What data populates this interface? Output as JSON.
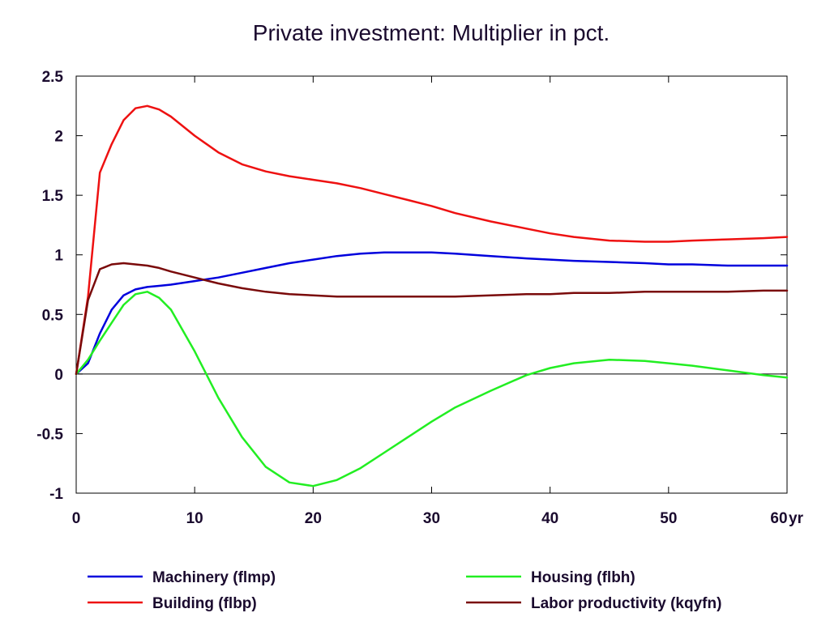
{
  "chart_data": {
    "type": "line",
    "title": "Private investment: Multiplier in pct.",
    "x_unit_label": "yr",
    "xlim": [
      0,
      60
    ],
    "ylim": [
      -1,
      2.5
    ],
    "x_ticks": [
      0,
      10,
      20,
      30,
      40,
      50,
      60
    ],
    "y_ticks": [
      -1,
      -0.5,
      0,
      0.5,
      1,
      1.5,
      2,
      2.5
    ],
    "x_tick_labels": [
      "0",
      "10",
      "20",
      "30",
      "40",
      "50",
      "60"
    ],
    "y_tick_labels": [
      "-1",
      "-0.5",
      "0",
      "0.5",
      "1",
      "1.5",
      "2",
      "2.5"
    ],
    "grid": false,
    "zero_line": true,
    "legend_position": "bottom",
    "x": [
      0,
      1,
      2,
      3,
      4,
      5,
      6,
      7,
      8,
      10,
      12,
      14,
      16,
      18,
      20,
      22,
      24,
      26,
      28,
      30,
      32,
      35,
      38,
      40,
      42,
      45,
      48,
      50,
      52,
      55,
      58,
      60
    ],
    "series": [
      {
        "name": "Machinery (flmp)",
        "color": "#0000dd",
        "values": [
          0,
          0.09,
          0.34,
          0.54,
          0.66,
          0.71,
          0.73,
          0.74,
          0.75,
          0.78,
          0.81,
          0.85,
          0.89,
          0.93,
          0.96,
          0.99,
          1.01,
          1.02,
          1.02,
          1.02,
          1.01,
          0.99,
          0.97,
          0.96,
          0.95,
          0.94,
          0.93,
          0.92,
          0.92,
          0.91,
          0.91,
          0.91
        ]
      },
      {
        "name": "Building (flbp)",
        "color": "#ee1111",
        "values": [
          0,
          0.65,
          1.69,
          1.93,
          2.13,
          2.23,
          2.25,
          2.22,
          2.16,
          2.0,
          1.86,
          1.76,
          1.7,
          1.66,
          1.63,
          1.6,
          1.56,
          1.51,
          1.46,
          1.41,
          1.35,
          1.28,
          1.22,
          1.18,
          1.15,
          1.12,
          1.11,
          1.11,
          1.12,
          1.13,
          1.14,
          1.15
        ]
      },
      {
        "name": "Housing (flbh)",
        "color": "#22ee22",
        "values": [
          0,
          0.12,
          0.28,
          0.43,
          0.58,
          0.67,
          0.69,
          0.64,
          0.54,
          0.19,
          -0.2,
          -0.53,
          -0.78,
          -0.91,
          -0.94,
          -0.89,
          -0.79,
          -0.66,
          -0.53,
          -0.4,
          -0.28,
          -0.14,
          -0.01,
          0.05,
          0.09,
          0.12,
          0.11,
          0.09,
          0.07,
          0.03,
          -0.01,
          -0.03
        ]
      },
      {
        "name": "Labor productivity (kqyfn)",
        "color": "#7a0a0a",
        "values": [
          0,
          0.62,
          0.88,
          0.92,
          0.93,
          0.92,
          0.91,
          0.89,
          0.86,
          0.81,
          0.76,
          0.72,
          0.69,
          0.67,
          0.66,
          0.65,
          0.65,
          0.65,
          0.65,
          0.65,
          0.65,
          0.66,
          0.67,
          0.67,
          0.68,
          0.68,
          0.69,
          0.69,
          0.69,
          0.69,
          0.7,
          0.7
        ]
      }
    ]
  },
  "legend": {
    "items": [
      {
        "label": "Machinery (flmp)",
        "color": "#0000dd"
      },
      {
        "label": "Housing (flbh)",
        "color": "#22ee22"
      },
      {
        "label": "Building (flbp)",
        "color": "#ee1111"
      },
      {
        "label": "Labor productivity (kqyfn)",
        "color": "#7a0a0a"
      }
    ]
  }
}
